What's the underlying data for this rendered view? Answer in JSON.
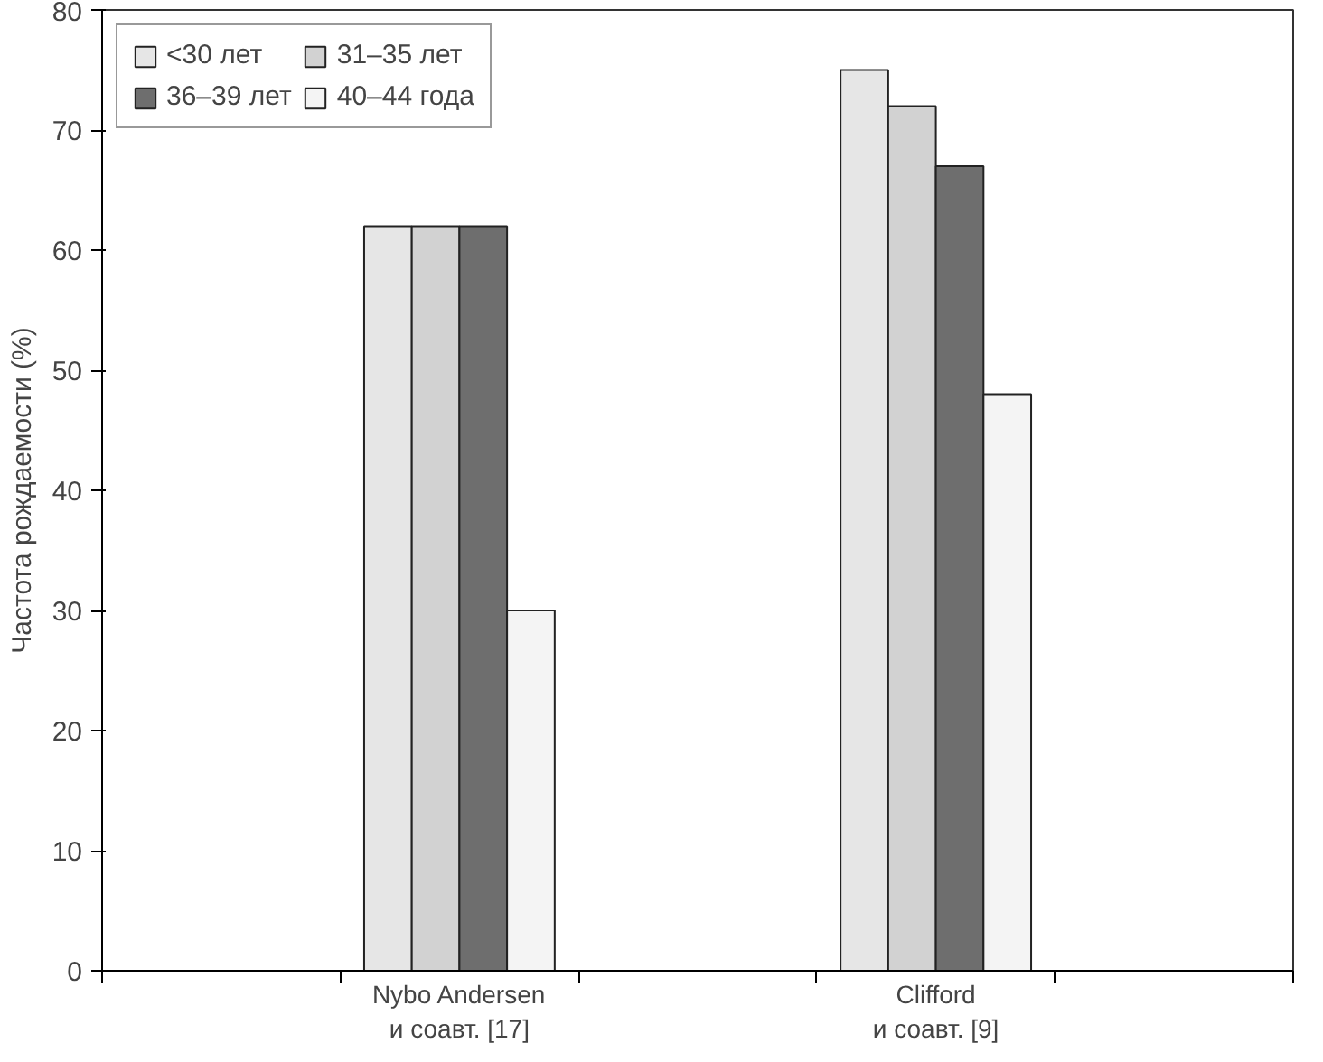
{
  "chart_data": {
    "type": "bar",
    "ylabel": "Частота рождаемости (%)",
    "categories": [
      null,
      "Nybo Andersen\nи соавт. [17]",
      null,
      "Clifford\nи соавт. [9]",
      null
    ],
    "series": [
      {
        "name": "<30 лет",
        "color": "#e6e6e6",
        "values": [
          null,
          62,
          null,
          75,
          null
        ]
      },
      {
        "name": "31–35 лет",
        "color": "#d2d2d2",
        "values": [
          null,
          62,
          null,
          72,
          null
        ]
      },
      {
        "name": "36–39 лет",
        "color": "#6e6e6e",
        "values": [
          null,
          62,
          null,
          67,
          null
        ]
      },
      {
        "name": "40–44 года",
        "color": "#f4f4f4",
        "values": [
          null,
          30,
          null,
          48,
          null
        ]
      }
    ],
    "ylim": [
      0,
      80
    ],
    "yticks": [
      0,
      10,
      20,
      30,
      40,
      50,
      60,
      70,
      80
    ],
    "grid": false,
    "legend": "top"
  }
}
